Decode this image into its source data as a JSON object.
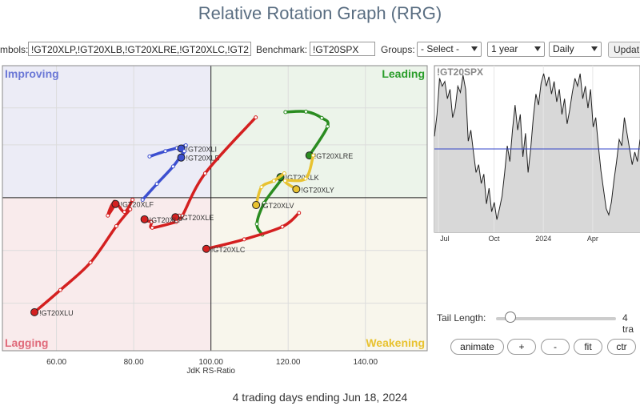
{
  "title": "Relative Rotation Graph (RRG)",
  "toolbar": {
    "symbols_label": "mbols:",
    "symbols_value": "!GT20XLP,!GT20XLB,!GT20XLRE,!GT20XLC,!GT2",
    "benchmark_label": "Benchmark:",
    "benchmark_value": "!GT20SPX",
    "groups_label": "Groups:",
    "groups_value": "- Select -",
    "period_value": "1 year",
    "frequency_value": "Daily",
    "update_label": "Updat"
  },
  "controls": {
    "tail_label": "Tail Length:",
    "tail_value": "4 tra",
    "tail_fraction": 0.07,
    "animate": "animate",
    "plus": "+",
    "minus": "-",
    "fit": "fit",
    "ctr": "ctr"
  },
  "footer": "4 trading days ending Jun 18, 2024",
  "chart_data": [
    {
      "type": "scatter",
      "xlabel": "JdK RS-Ratio",
      "ylabel": "",
      "x_ticks": [
        "60.00",
        "80.00",
        "100.00",
        "120.00",
        "140.00"
      ],
      "x_tick_values": [
        60,
        80,
        100,
        120,
        140
      ],
      "xlim": [
        46,
        156
      ],
      "ylim": [
        71,
        125
      ],
      "center": [
        100,
        100
      ],
      "quadrants": {
        "improving": {
          "label": "Improving",
          "color": "#6b78d6",
          "bg": "#ececf6"
        },
        "leading": {
          "label": "Leading",
          "color": "#2a9d2a",
          "bg": "#ecf4ea"
        },
        "lagging": {
          "label": "Lagging",
          "color": "#e06a7a",
          "bg": "#f9ebec"
        },
        "weakening": {
          "label": "Weakening",
          "color": "#e8c230",
          "bg": "#f8f6ec"
        }
      },
      "series": [
        {
          "name": "!GT20XLI",
          "color": "#3c4fd0",
          "points": [
            [
              84.1,
              107.8
            ],
            [
              88.2,
              108.8
            ],
            [
              91.2,
              109.4
            ],
            [
              93.5,
              109.9
            ],
            [
              92.3,
              109.3
            ]
          ],
          "label_pos": "right"
        },
        {
          "name": "!GT20XLB",
          "color": "#3c4fd0",
          "points": [
            [
              82.3,
              99.6
            ],
            [
              86.0,
              102.6
            ],
            [
              90.2,
              105.9
            ],
            [
              93.1,
              108.8
            ],
            [
              92.3,
              107.6
            ]
          ],
          "label_pos": "right"
        },
        {
          "name": "!GT20XLF",
          "color": "#d42020",
          "points": [
            [
              79.7,
              99.6
            ],
            [
              77.6,
              97.3
            ],
            [
              75.0,
              99.2
            ],
            [
              73.3,
              96.6
            ],
            [
              75.3,
              98.8
            ]
          ],
          "label_pos": "right"
        },
        {
          "name": "!GT20XLRE",
          "color": "#2a8c20",
          "points": [
            [
              119.3,
              116.2
            ],
            [
              124.6,
              116.3
            ],
            [
              128.7,
              115.1
            ],
            [
              130.2,
              113.5
            ],
            [
              125.5,
              108.0
            ]
          ],
          "label_pos": "right"
        },
        {
          "name": "!GT20XLK",
          "color": "#2a8c20",
          "points": [
            [
              113.3,
              93.0
            ],
            [
              111.9,
              95.0
            ],
            [
              113.8,
              99.0
            ],
            [
              118.3,
              103.5
            ],
            [
              118.0,
              103.9
            ]
          ],
          "label_pos": "right"
        },
        {
          "name": "!GT20XLY",
          "color": "#e8c230",
          "points": [
            [
              126.5,
              108.0
            ],
            [
              124.5,
              103.6
            ],
            [
              119.2,
              103.2
            ],
            [
              122.1,
              101.6
            ]
          ],
          "label_pos": "right"
        },
        {
          "name": "!GT20XLV",
          "color": "#e8c230",
          "points": [
            [
              119.0,
              104.6
            ],
            [
              116.3,
              103.2
            ],
            [
              113.1,
              102.0
            ],
            [
              111.7,
              98.6
            ]
          ],
          "label_pos": "right"
        },
        {
          "name": "!GT20XLE",
          "color": "#d42020",
          "points": [
            [
              111.6,
              115.2
            ],
            [
              98.5,
              104.6
            ],
            [
              92.6,
              96.6
            ],
            [
              91.8,
              96.6
            ],
            [
              90.8,
              96.3
            ]
          ],
          "label_pos": "right"
        },
        {
          "name": "!GT20XLP",
          "color": "#d42020",
          "points": [
            [
              91.0,
              95.4
            ],
            [
              84.8,
              94.3
            ],
            [
              84.6,
              95.4
            ],
            [
              83.1,
              95.6
            ],
            [
              82.8,
              95.9
            ]
          ],
          "label_pos": "right"
        },
        {
          "name": "!GT20XLC",
          "color": "#d42020",
          "points": [
            [
              122.8,
              97.1
            ],
            [
              118.5,
              94.5
            ],
            [
              108.6,
              92.1
            ],
            [
              98.8,
              90.3
            ]
          ],
          "label_pos": "right"
        },
        {
          "name": "!GT20XLU",
          "color": "#d42020",
          "points": [
            [
              79.1,
              97.8
            ],
            [
              75.5,
              94.6
            ],
            [
              68.8,
              87.7
            ],
            [
              61.0,
              82.5
            ],
            [
              54.3,
              78.3
            ]
          ],
          "label_pos": "right"
        }
      ]
    },
    {
      "type": "line",
      "title": "!GT20SPX",
      "x_ticks": [
        "Jul",
        "Oct",
        "2024",
        "Apr"
      ],
      "x_tick_fractions": [
        0.02,
        0.29,
        0.53,
        0.77
      ],
      "ylim": [
        0,
        1
      ],
      "baseline": 0.5,
      "series": [
        {
          "name": "!GT20SPX",
          "color": "#222",
          "values": [
            0.58,
            0.72,
            0.95,
            0.9,
            0.93,
            0.82,
            0.88,
            0.7,
            0.76,
            0.9,
            0.86,
            0.97,
            0.88,
            0.55,
            0.62,
            0.48,
            0.35,
            0.4,
            0.28,
            0.34,
            0.15,
            0.25,
            0.1,
            0.16,
            0.05,
            0.12,
            0.2,
            0.35,
            0.52,
            0.42,
            0.62,
            0.78,
            0.62,
            0.72,
            0.45,
            0.6,
            0.35,
            0.5,
            0.7,
            0.85,
            0.78,
            0.92,
            0.98,
            0.9,
            0.96,
            0.85,
            0.93,
            0.8,
            0.88,
            0.72,
            0.82,
            0.66,
            0.75,
            0.86,
            0.95,
            0.9,
            0.98,
            0.82,
            0.9,
            0.76,
            0.88,
            0.64,
            0.7,
            0.52,
            0.36,
            0.24,
            0.12,
            0.08,
            0.16,
            0.3,
            0.42,
            0.56,
            0.52,
            0.7,
            0.6,
            0.5,
            0.4,
            0.48,
            0.42,
            0.56
          ]
        }
      ]
    }
  ]
}
